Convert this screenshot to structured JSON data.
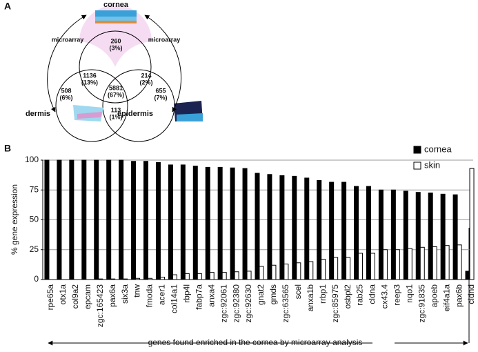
{
  "panel_labels": [
    "A",
    "B"
  ],
  "venn": {
    "sets": [
      "cornea",
      "dermis",
      "epidermis"
    ],
    "arrow_labels": [
      "microarray",
      "microarray"
    ],
    "regions": [
      {
        "count": 260,
        "percent_label": "(3%)"
      },
      {
        "count": 1136,
        "percent_label": "(13%)"
      },
      {
        "count": 214,
        "percent_label": "(2%)"
      },
      {
        "count": 5881,
        "percent_label": "(67%)"
      },
      {
        "count": 508,
        "percent_label": "(6%)"
      },
      {
        "count": 113,
        "percent_label": "(1%)"
      },
      {
        "count": 655,
        "percent_label": "(7%)"
      }
    ]
  },
  "chart_data": {
    "type": "bar",
    "ylabel": "% gene expression",
    "annotation": "genes found enriched in the cornea by microarray analysis",
    "categories": [
      "rpe65a",
      "otx1a",
      "col9a2",
      "epcam",
      "zgc:165423",
      "pax6a",
      "six3a",
      "tnw",
      "fmoda",
      "acer1",
      "col14a1",
      "rbp4l",
      "fabp7a",
      "anxa4",
      "zgc:92061",
      "zgc:92380",
      "zgc:92630",
      "gnat2",
      "gmds",
      "zgc:63565",
      "scel",
      "anxa1b",
      "rrbp1",
      "zgc:85975",
      "osbpl2",
      "rab25",
      "cldna",
      "cx43.4",
      "reep3",
      "nqo1",
      "zgc:91835",
      "apoeb",
      "eif4a1a",
      "pax6b",
      "cldnd"
    ],
    "series": [
      {
        "name": "cornea",
        "color": "#000000",
        "values": [
          100,
          100,
          100,
          100,
          100,
          100,
          100,
          99,
          99,
          98,
          96,
          96,
          95,
          94,
          94,
          93.5,
          93,
          89,
          88,
          87,
          86.5,
          85,
          83,
          81.5,
          81.5,
          78,
          78,
          75,
          75,
          74,
          73,
          72.5,
          71.5,
          71,
          7
        ]
      },
      {
        "name": "skin",
        "color": "#ffffff",
        "values": [
          0,
          0,
          0,
          0,
          0.5,
          0.5,
          0.5,
          1,
          1,
          2,
          4,
          5,
          5,
          6,
          6,
          6.5,
          7,
          11,
          12,
          13,
          14,
          15,
          17,
          18.5,
          18.5,
          22,
          22,
          25,
          25,
          26,
          27,
          27.5,
          28.5,
          29,
          93
        ]
      }
    ],
    "ylim": [
      0,
      100
    ],
    "yticks": [
      0,
      25,
      50,
      75,
      100
    ],
    "grid": true,
    "legend": "upper right"
  }
}
